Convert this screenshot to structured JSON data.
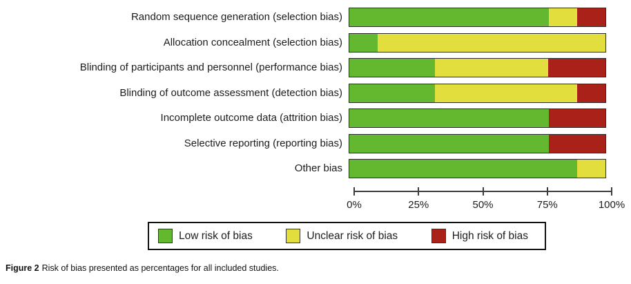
{
  "chart_data": {
    "type": "bar",
    "orientation": "horizontal",
    "stacked": true,
    "title": "",
    "xlabel": "",
    "ylabel": "",
    "xlim": [
      0,
      100
    ],
    "grid": false,
    "legend_position": "bottom",
    "categories": [
      "Random sequence generation (selection bias)",
      "Allocation concealment (selection bias)",
      "Blinding of participants and personnel (performance bias)",
      "Blinding of outcome assessment (detection bias)",
      "Incomplete outcome data (attrition bias)",
      "Selective reporting (reporting bias)",
      "Other bias"
    ],
    "series": [
      {
        "name": "Low risk of bias",
        "color": "#63b82f",
        "values": [
          77.8,
          11.1,
          33.3,
          33.3,
          77.8,
          77.8,
          88.9
        ]
      },
      {
        "name": "Unclear risk of bias",
        "color": "#e2de3e",
        "values": [
          11.1,
          88.9,
          44.4,
          55.6,
          0,
          0,
          11.1
        ]
      },
      {
        "name": "High risk of bias",
        "color": "#a92118",
        "values": [
          11.1,
          0,
          22.2,
          11.1,
          22.2,
          22.2,
          0
        ]
      }
    ],
    "x_ticks": [
      {
        "label": "0%",
        "value": 0
      },
      {
        "label": "25%",
        "value": 25
      },
      {
        "label": "50%",
        "value": 50
      },
      {
        "label": "75%",
        "value": 75
      },
      {
        "label": "100%",
        "value": 100
      }
    ]
  },
  "caption": {
    "prefix": "Figure 2",
    "text": "Risk of bias presented as percentages for all included studies."
  }
}
